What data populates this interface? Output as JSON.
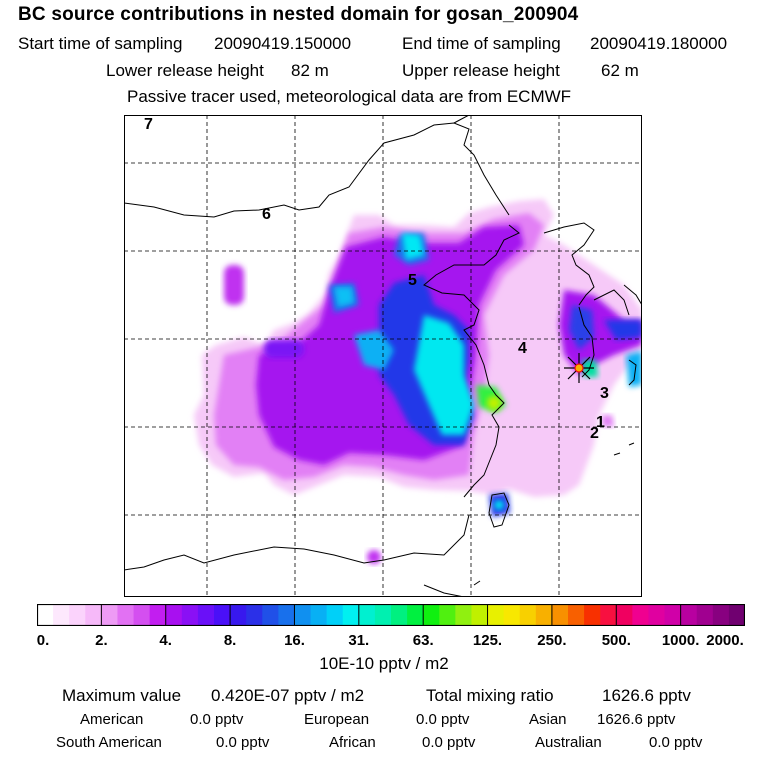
{
  "header": {
    "title": "BC  source contributions in nested domain for gosan_200904",
    "start_label": "Start time of sampling",
    "start_value": "20090419.150000",
    "end_label": "End time of sampling",
    "end_value": "20090419.180000",
    "lower_label": "Lower release height",
    "lower_value": "82 m",
    "upper_label": "Upper release height",
    "upper_value": "62 m",
    "note": "Passive tracer used, meteorological data are from ECMWF"
  },
  "colorbar": {
    "ticks": [
      "0.",
      "2.",
      "4.",
      "8.",
      "16.",
      "31.",
      "63.",
      "125.",
      "250.",
      "500.",
      "1000.",
      "2000."
    ],
    "colors": [
      "#ffffff",
      "#fde8fd",
      "#fbd3fc",
      "#f6b9f9",
      "#ee9bf5",
      "#e271f3",
      "#d44ff0",
      "#c21ef0",
      "#a810f0",
      "#8a10f5",
      "#6a10f8",
      "#4a10f8",
      "#3818ee",
      "#2b30e8",
      "#2050e8",
      "#1870ec",
      "#1090f0",
      "#08b0f4",
      "#00d0f8",
      "#00f0f0",
      "#00f0d0",
      "#00f0b0",
      "#00f080",
      "#00f040",
      "#10f010",
      "#50f010",
      "#90f010",
      "#c0f000",
      "#e8f000",
      "#f8e800",
      "#f8d000",
      "#f8b000",
      "#f89000",
      "#f86000",
      "#f83000",
      "#f81040",
      "#f00060",
      "#f00090",
      "#e000a0",
      "#d000a8",
      "#b800a0",
      "#a00090",
      "#880080",
      "#700070"
    ],
    "units": "10E-10 pptv / m2"
  },
  "summary": {
    "max_label": "Maximum value",
    "max_value": "0.420E-07 pptv / m2",
    "total_label": "Total mixing ratio",
    "total_value": "1626.6 pptv",
    "regions": [
      {
        "name": "American",
        "value": "0.0 pptv"
      },
      {
        "name": "European",
        "value": "0.0 pptv"
      },
      {
        "name": "Asian",
        "value": "1626.6 pptv"
      },
      {
        "name": "South American",
        "value": "0.0 pptv"
      },
      {
        "name": "African",
        "value": "0.0 pptv"
      },
      {
        "name": "Australian",
        "value": "0.0 pptv"
      }
    ]
  },
  "chart_data": {
    "type": "heatmap",
    "title": "BC  source contributions in nested domain for gosan_200904",
    "colorbar_levels": [
      0,
      2,
      4,
      8,
      16,
      31,
      63,
      125,
      250,
      500,
      1000,
      2000
    ],
    "colorbar_units": "10E-10 pptv / m2",
    "position_labels": [
      "1",
      "2",
      "3",
      "4",
      "5",
      "6",
      "7"
    ],
    "receptor": "gosan",
    "grid": true
  }
}
